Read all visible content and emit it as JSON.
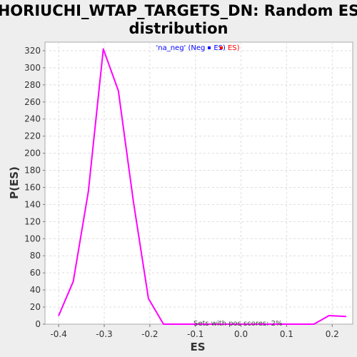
{
  "chart_data": {
    "type": "line",
    "title_line1": "HORIUCHI_WTAP_TARGETS_DN: Random ES",
    "title_line2": "distribution",
    "xlabel": "ES",
    "ylabel": "P(ES)",
    "xlim": [
      -0.43,
      0.245
    ],
    "ylim": [
      0,
      330
    ],
    "x_ticks": [
      -0.4,
      -0.3,
      -0.2,
      -0.1,
      0.0,
      0.1,
      0.2
    ],
    "x_tick_labels": [
      "-0.4",
      "-0.3",
      "-0.2",
      "-0.1",
      "0.0",
      "0.1",
      "0.2"
    ],
    "y_ticks": [
      0,
      20,
      40,
      60,
      80,
      100,
      120,
      140,
      160,
      180,
      200,
      220,
      240,
      260,
      280,
      300,
      320
    ],
    "y_tick_labels": [
      "0",
      "20",
      "40",
      "60",
      "80",
      "100",
      "120",
      "140",
      "160",
      "180",
      "200",
      "220",
      "240",
      "260",
      "280",
      "300",
      "320"
    ],
    "grid": true,
    "legend": {
      "placement": "top-center",
      "prefix": "'na_neg' (Neg",
      "prefix_color": "#0000ff",
      "mid": "ES)",
      "mid_color": "#0000ff",
      "suffix": "ES)",
      "suffix_color": "#ff0000",
      "swatch_colors": [
        "#0000ff",
        "#ff0000"
      ]
    },
    "annotation": "Sets with pos scores: 2%",
    "series": [
      {
        "color": "#ff00ff",
        "x": [
          -0.4,
          -0.368,
          -0.335,
          -0.302,
          -0.269,
          -0.236,
          -0.203,
          -0.17,
          -0.137,
          -0.104,
          -0.071,
          -0.038,
          -0.005,
          0.028,
          0.061,
          0.094,
          0.127,
          0.16,
          0.193,
          0.23
        ],
        "y": [
          10,
          50,
          155,
          322,
          273,
          143,
          30,
          0,
          0,
          0,
          0,
          0,
          0,
          0,
          0,
          0,
          0,
          0,
          10,
          9
        ]
      }
    ]
  }
}
